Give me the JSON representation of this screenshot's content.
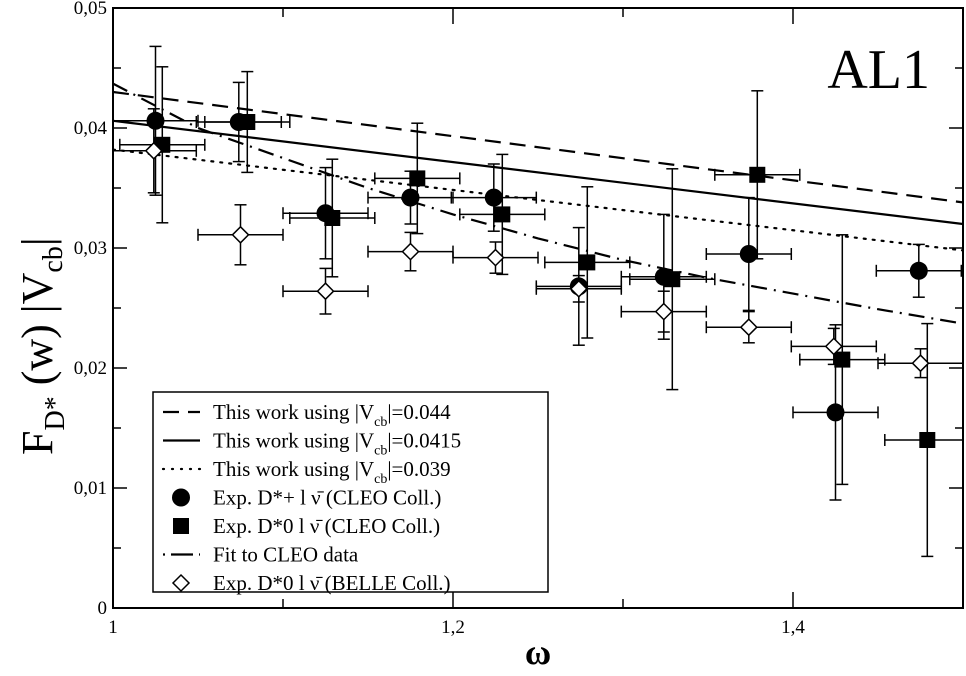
{
  "chart_data": {
    "type": "scatter",
    "title": "AL1",
    "xlabel": "ω",
    "ylabel": {
      "main": "F",
      "sub": "D*",
      "mid": " (w)  |V",
      "sub2": "cb",
      "end": "|"
    },
    "xlim": [
      1,
      1.5
    ],
    "ylim": [
      0,
      0.05
    ],
    "xticks": [
      {
        "v": 1,
        "label": "1"
      },
      {
        "v": 1.2,
        "label": "1,2"
      },
      {
        "v": 1.4,
        "label": "1,4"
      }
    ],
    "yticks": [
      {
        "v": 0,
        "label": "0"
      },
      {
        "v": 0.01,
        "label": "0,01"
      },
      {
        "v": 0.02,
        "label": "0,02"
      },
      {
        "v": 0.03,
        "label": "0,03"
      },
      {
        "v": 0.04,
        "label": "0,04"
      },
      {
        "v": 0.05,
        "label": "0,05"
      }
    ],
    "grid": false,
    "legend_position": "bottom-left",
    "lines": [
      {
        "name": "This work using |Vcb|=0.044",
        "legend": {
          "pre": "This work using |V",
          "sub": "cb",
          "post": "|=0.044"
        },
        "style": "dashed",
        "x": [
          1,
          1.5
        ],
        "y": [
          0.043,
          0.0338
        ]
      },
      {
        "name": "This work using |Vcb|=0.0415",
        "legend": {
          "pre": "This work using |V",
          "sub": "cb",
          "post": "|=0.0415"
        },
        "style": "solid",
        "x": [
          1,
          1.5
        ],
        "y": [
          0.0406,
          0.032
        ]
      },
      {
        "name": "This work using |Vcb|=0.039",
        "legend": {
          "pre": "This work using |V",
          "sub": "cb",
          "post": "|=0.039"
        },
        "style": "dotted",
        "x": [
          1,
          1.5
        ],
        "y": [
          0.0382,
          0.0298
        ]
      },
      {
        "name": "Fit to CLEO data",
        "legend": {
          "pre": "Fit to CLEO data",
          "sub": "",
          "post": ""
        },
        "style": "dashdot",
        "x": [
          1,
          1.05,
          1.1,
          1.15,
          1.2,
          1.25,
          1.3,
          1.35,
          1.4,
          1.45,
          1.5
        ],
        "y": [
          0.0437,
          0.04,
          0.0375,
          0.035,
          0.0328,
          0.0308,
          0.029,
          0.0275,
          0.0262,
          0.0249,
          0.0237
        ]
      }
    ],
    "series": [
      {
        "name": "Exp. D*+ l ν̄ (CLEO Coll.)",
        "legend": {
          "pre": "Exp.  D*+ l ",
          "sub": "",
          "post": "ν̄  (CLEO Coll.)"
        },
        "marker": "circle",
        "x": [
          1.025,
          1.074,
          1.125,
          1.175,
          1.224,
          1.274,
          1.324,
          1.374,
          1.425,
          1.474
        ],
        "y": [
          0.0406,
          0.0405,
          0.0329,
          0.0342,
          0.0342,
          0.0268,
          0.0276,
          0.0295,
          0.0163,
          0.0281
        ],
        "xerr": [
          0.025,
          0.025,
          0.025,
          0.025,
          0.025,
          0.025,
          0.025,
          0.025,
          0.025,
          0.025
        ],
        "yerr": [
          0.0062,
          0.0033,
          0.0038,
          0.0022,
          0.0028,
          0.0049,
          0.0052,
          0.0047,
          0.0073,
          0.0022
        ]
      },
      {
        "name": "Exp. D*0 l ν̄ (CLEO Coll.)",
        "legend": {
          "pre": "Exp.  D*0 l ",
          "sub": "",
          "post": "ν̄  (CLEO Coll.)"
        },
        "marker": "square",
        "x": [
          1.029,
          1.079,
          1.129,
          1.179,
          1.229,
          1.279,
          1.329,
          1.379,
          1.429,
          1.479
        ],
        "y": [
          0.0386,
          0.0405,
          0.0325,
          0.0358,
          0.0328,
          0.0288,
          0.0274,
          0.0361,
          0.0207,
          0.014
        ],
        "xerr": [
          0.025,
          0.025,
          0.025,
          0.025,
          0.025,
          0.025,
          0.025,
          0.025,
          0.025,
          0.025
        ],
        "yerr": [
          0.0065,
          0.0042,
          0.0049,
          0.0046,
          0.005,
          0.0063,
          0.0092,
          0.007,
          0.0104,
          0.0097
        ]
      },
      {
        "name": "Exp. D*0 l ν̄ (BELLE Coll.)",
        "legend": {
          "pre": "Exp.  D*0 l ",
          "sub": "",
          "post": "ν̄  (BELLE Coll.)"
        },
        "marker": "diamond-open",
        "x": [
          1.024,
          1.075,
          1.125,
          1.175,
          1.225,
          1.274,
          1.324,
          1.374,
          1.424,
          1.475
        ],
        "y": [
          0.0381,
          0.0311,
          0.0264,
          0.0297,
          0.0292,
          0.0266,
          0.0247,
          0.0234,
          0.0218,
          0.0204
        ],
        "xerr": [
          0.025,
          0.025,
          0.025,
          0.025,
          0.025,
          0.025,
          0.025,
          0.025,
          0.025,
          0.025
        ],
        "yerr": [
          0.0035,
          0.0025,
          0.0019,
          0.0016,
          0.0013,
          0.0011,
          0.0017,
          0.0013,
          0.0015,
          0.0012
        ]
      }
    ],
    "legend_order": [
      "line0",
      "line1",
      "line2",
      "series0",
      "series1",
      "line3",
      "series2"
    ]
  }
}
